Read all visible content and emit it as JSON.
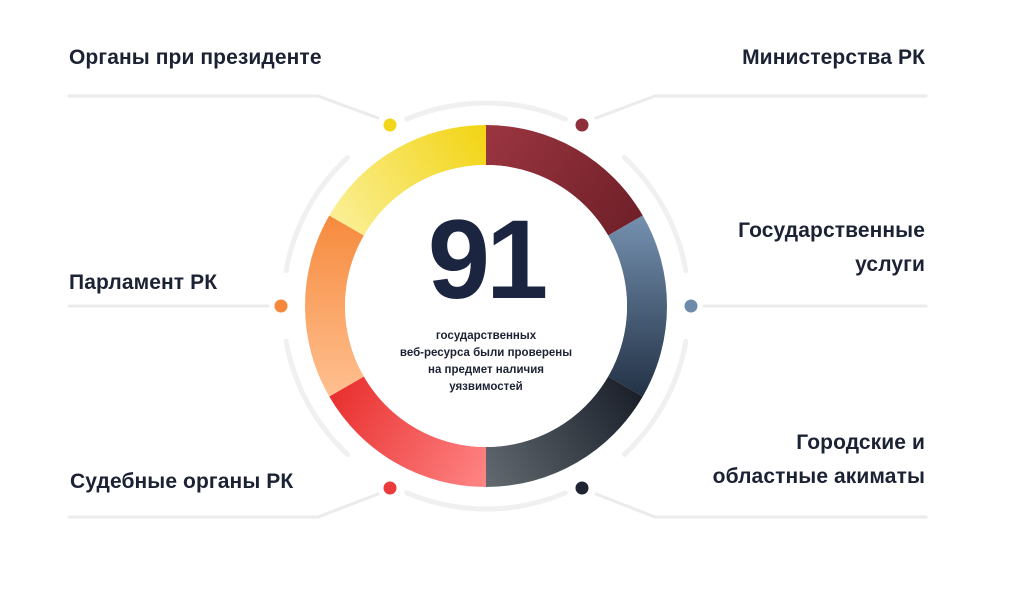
{
  "total": {
    "number": "91",
    "caption_lines": [
      "государственных",
      "веб-ресурса были проверены",
      "на предмет наличия",
      "уязвимостей"
    ]
  },
  "categories": [
    {
      "lines": [
        "Органы при президенте"
      ],
      "color": "#f2d61a"
    },
    {
      "lines": [
        "Министерства РК"
      ],
      "color": "#8e2f3a"
    },
    {
      "lines": [
        "Государственные",
        "услуги"
      ],
      "color": "#6f8bab"
    },
    {
      "lines": [
        "Городские и",
        "областные акиматы"
      ],
      "color": "#1e2430"
    },
    {
      "lines": [
        "Судебные органы РК"
      ],
      "color": "#ea3a3a"
    },
    {
      "lines": [
        "Парламент РК"
      ],
      "color": "#f5883a"
    }
  ],
  "colors": {
    "text": "#1b2233",
    "connector": "#ebebeb",
    "outer_ring": "#f0f0f0"
  }
}
